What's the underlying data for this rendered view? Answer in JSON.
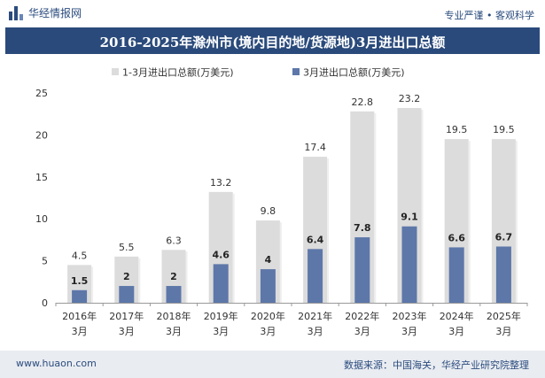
{
  "header": {
    "brand": "华经情报网",
    "slogan": "专业严谨 • 客观科学"
  },
  "footer": {
    "url": "www.huaon.com",
    "source": "数据来源：中国海关，华经产业研究院整理"
  },
  "colors": {
    "series1": "#dcdcdc",
    "series2": "#5d77a9",
    "title_bg": "#2a4a7b"
  },
  "chart_data": {
    "type": "bar",
    "title": "2016-2025年滁州市(境内目的地/货源地)3月进出口总额",
    "categories": [
      [
        "2016年",
        "3月"
      ],
      [
        "2017年",
        "3月"
      ],
      [
        "2018年",
        "3月"
      ],
      [
        "2019年",
        "3月"
      ],
      [
        "2020年",
        "3月"
      ],
      [
        "2021年",
        "3月"
      ],
      [
        "2022年",
        "3月"
      ],
      [
        "2023年",
        "3月"
      ],
      [
        "2024年",
        "3月"
      ],
      [
        "2025年",
        "3月"
      ]
    ],
    "series": [
      {
        "name": "1-3月进出口总额(万美元)",
        "values": [
          4.5,
          5.5,
          6.3,
          13.2,
          9.8,
          17.4,
          22.8,
          23.2,
          19.5,
          19.5
        ]
      },
      {
        "name": "3月进出口总额(万美元)",
        "values": [
          1.5,
          2,
          2,
          4.6,
          4,
          6.4,
          7.8,
          9.1,
          6.6,
          6.7
        ]
      }
    ],
    "ylim": [
      0,
      25
    ],
    "yticks": [
      0,
      5,
      10,
      15,
      20,
      25
    ],
    "grid": false,
    "legend": "top-center"
  }
}
